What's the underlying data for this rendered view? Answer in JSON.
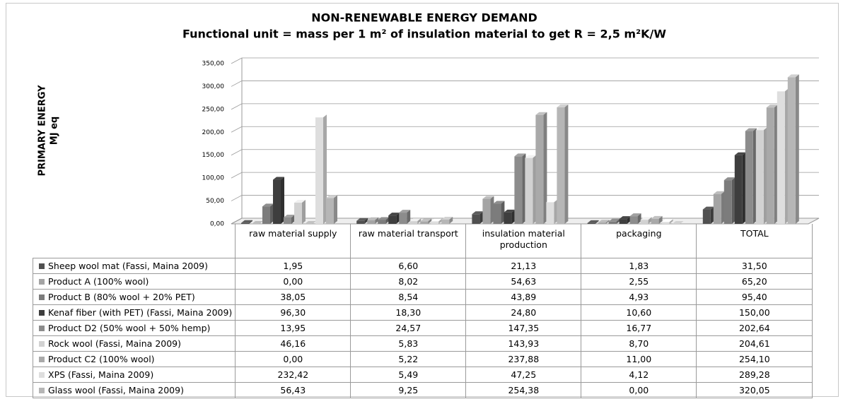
{
  "chart_data": {
    "type": "bar3d",
    "title": "NON-RENEWABLE ENERGY DEMAND",
    "subtitle": "Functional unit = mass per 1 m² of insulation material to get R = 2,5 m²K/W",
    "y_label": [
      "PRIMARY ENERGY",
      "MJ eq"
    ],
    "categories": [
      "raw material supply",
      "raw material transport",
      "insulation material production",
      "packaging",
      "TOTAL"
    ],
    "ylim": [
      0,
      350
    ],
    "yticks": [
      {
        "value": 0,
        "label": "0,00"
      },
      {
        "value": 50,
        "label": "50,00"
      },
      {
        "value": 100,
        "label": "100,00"
      },
      {
        "value": 150,
        "label": "150,00"
      },
      {
        "value": 200,
        "label": "200,00"
      },
      {
        "value": 250,
        "label": "250,00"
      },
      {
        "value": 300,
        "label": "300,00"
      },
      {
        "value": 350,
        "label": "350,00"
      }
    ],
    "grid": true,
    "series": [
      {
        "name": "Sheep wool mat (Fassi, Maina 2009)",
        "color": "#505050",
        "values": [
          1.95,
          6.6,
          21.13,
          1.83,
          31.5
        ],
        "value_labels": [
          "1,95",
          "6,60",
          "21,13",
          "1,83",
          "31,50"
        ]
      },
      {
        "name": "Product A (100% wool)",
        "color": "#a4a4a4",
        "values": [
          0,
          8.02,
          54.63,
          2.55,
          65.2
        ],
        "value_labels": [
          "0,00",
          "8,02",
          "54,63",
          "2,55",
          "65,20"
        ]
      },
      {
        "name": "Product B (80% wool + 20% PET)",
        "color": "#7c7c7c",
        "values": [
          38.05,
          8.54,
          43.89,
          4.93,
          95.4
        ],
        "value_labels": [
          "38,05",
          "8,54",
          "43,89",
          "4,93",
          "95,40"
        ]
      },
      {
        "name": "Kenaf fiber (with PET) (Fassi, Maina 2009)",
        "color": "#3e3e3e",
        "values": [
          96.3,
          18.3,
          24.8,
          10.6,
          150
        ],
        "value_labels": [
          "96,30",
          "18,30",
          "24,80",
          "10,60",
          "150,00"
        ]
      },
      {
        "name": "Product D2 (50% wool + 50% hemp)",
        "color": "#8c8c8c",
        "values": [
          13.95,
          24.57,
          147.35,
          16.77,
          202.64
        ],
        "value_labels": [
          "13,95",
          "24,57",
          "147,35",
          "16,77",
          "202,64"
        ]
      },
      {
        "name": "Rock wool (Fassi, Maina 2009)",
        "color": "#d2d2d2",
        "values": [
          46.16,
          5.83,
          143.93,
          8.7,
          204.61
        ],
        "value_labels": [
          "46,16",
          "5,83",
          "143,93",
          "8,70",
          "204,61"
        ]
      },
      {
        "name": "Product C2 (100% wool)",
        "color": "#a9a9a9",
        "values": [
          0,
          5.22,
          237.88,
          11,
          254.1
        ],
        "value_labels": [
          "0,00",
          "5,22",
          "237,88",
          "11,00",
          "254,10"
        ]
      },
      {
        "name": "XPS (Fassi, Maina 2009)",
        "color": "#dedede",
        "values": [
          232.42,
          5.49,
          47.25,
          4.12,
          289.28
        ],
        "value_labels": [
          "232,42",
          "5,49",
          "47,25",
          "4,12",
          "289,28"
        ]
      },
      {
        "name": "Glass wool (Fassi, Maina 2009)",
        "color": "#b6b6b6",
        "values": [
          56.43,
          9.25,
          254.38,
          0,
          320.05
        ],
        "value_labels": [
          "56,43",
          "9,25",
          "254,38",
          "0,00",
          "320,05"
        ]
      }
    ]
  }
}
